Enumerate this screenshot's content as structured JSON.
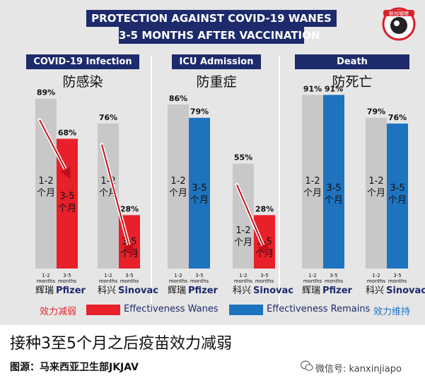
{
  "header": {
    "title_line1": "PROTECTION AGAINST COVID-19 WANES",
    "title_line2": "3-5 MONTHS AFTER VACCINATION",
    "logo_text": "新加坡眼"
  },
  "legend": {
    "wanes_cn": "效力减弱",
    "wanes_en": "Effectiveness Wanes",
    "remains_en": "Effectiveness Remains",
    "remains_cn": "效力维持"
  },
  "colors": {
    "gray": "#c8c8c8",
    "red": "#e8202a",
    "blue": "#1e73be",
    "navy": "#1d2a6b"
  },
  "labels": {
    "period_short": "1-2 个月",
    "period_long": "3-5 个月",
    "tick_short": "1-2 months",
    "tick_long": "3-5 months"
  },
  "footer": {
    "headline": "接种3至5个月之后疫苗效力减弱",
    "source": "图源：马来西亚卫生部JKJAV",
    "wechat": "微信号: kanxinjiapo"
  },
  "chart_data": [
    {
      "type": "bar",
      "title": "COVID-19 Infection",
      "subtitle": "防感染",
      "categories": [
        "辉瑞 Pfizer",
        "科兴 Sinovac"
      ],
      "series": [
        {
          "name": "1-2 months",
          "values": [
            89,
            76
          ]
        },
        {
          "name": "3-5 months",
          "values": [
            68,
            28
          ]
        }
      ],
      "status": [
        "wanes",
        "wanes"
      ],
      "ylim": [
        0,
        100
      ]
    },
    {
      "type": "bar",
      "title": "ICU Admission",
      "subtitle": "防重症",
      "categories": [
        "辉瑞 Pfizer",
        "科兴 Sinovac"
      ],
      "series": [
        {
          "name": "1-2 months",
          "values": [
            86,
            55
          ]
        },
        {
          "name": "3-5 months",
          "values": [
            79,
            28
          ]
        }
      ],
      "status": [
        "remains",
        "wanes"
      ],
      "ylim": [
        0,
        100
      ]
    },
    {
      "type": "bar",
      "title": "Death",
      "subtitle": "防死亡",
      "categories": [
        "辉瑞 Pfizer",
        "科兴 Sinovac"
      ],
      "series": [
        {
          "name": "1-2 months",
          "values": [
            91,
            79
          ]
        },
        {
          "name": "3-5 months",
          "values": [
            91,
            76
          ]
        }
      ],
      "status": [
        "remains",
        "remains"
      ],
      "ylim": [
        0,
        100
      ]
    }
  ]
}
